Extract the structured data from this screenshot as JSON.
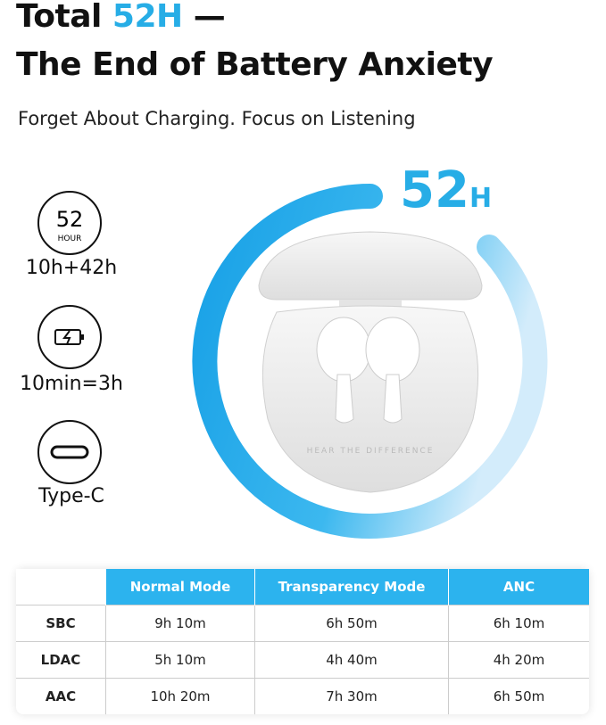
{
  "header": {
    "title_line1": {
      "prefix": "Total",
      "highlight": "52H",
      "dash": "—"
    },
    "title_line2": "The End of Battery Anxiety",
    "subtitle": "Forget About Charging. Focus on Listening"
  },
  "badge": {
    "number": "52",
    "unit": "H"
  },
  "features": [
    {
      "icon_number": "52",
      "icon_unit": "HOUR",
      "label": "10h+42h"
    },
    {
      "label": "10min=3h"
    },
    {
      "label": "Type-C"
    }
  ],
  "case_text": "HEAR THE DIFFERENCE",
  "table": {
    "header": [
      "Normal Mode",
      "Transparency Mode",
      "ANC"
    ],
    "rows": [
      [
        "SBC",
        "9h 10m",
        "6h 50m",
        "6h 10m"
      ],
      [
        "LDAC",
        "5h 10m",
        "4h 40m",
        "4h 20m"
      ],
      [
        "AAC",
        "10h 20m",
        "7h 30m",
        "6h 50m"
      ]
    ]
  }
}
